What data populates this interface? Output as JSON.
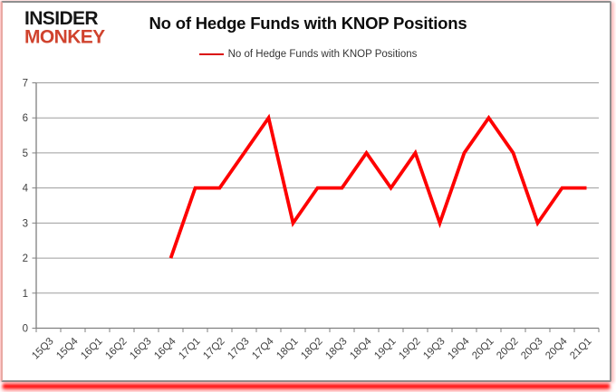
{
  "logo": {
    "line1": "INSIDER",
    "line2": "MONKEY",
    "line1_color": "#161616",
    "line2_color": "#d0432e"
  },
  "header": {
    "title": "No of Hedge Funds with KNOP Positions"
  },
  "legend": {
    "label": "No of Hedge Funds with KNOP Positions",
    "line_color": "#da0b0b"
  },
  "colors": {
    "gridline": "#9d9d9d",
    "axis": "#808080",
    "tick_label": "#3f3f3f",
    "series_red": "#fe0000",
    "frame_red": "#ff0000"
  },
  "chart_data": {
    "type": "line",
    "title": "No of Hedge Funds with KNOP Positions",
    "xlabel": "",
    "ylabel": "",
    "ylim": [
      0,
      7
    ],
    "yticks": [
      0,
      1,
      2,
      3,
      4,
      5,
      6,
      7
    ],
    "grid": true,
    "legend_position": "top",
    "categories": [
      "15Q3",
      "15Q4",
      "16Q1",
      "16Q2",
      "16Q3",
      "16Q4",
      "17Q1",
      "17Q2",
      "17Q3",
      "17Q4",
      "18Q1",
      "18Q2",
      "18Q3",
      "18Q4",
      "19Q1",
      "19Q2",
      "19Q3",
      "19Q4",
      "20Q1",
      "20Q2",
      "20Q3",
      "20Q4",
      "21Q1"
    ],
    "series": [
      {
        "name": "No of Hedge Funds with KNOP Positions",
        "color": "#fe0000",
        "values": [
          null,
          null,
          null,
          null,
          null,
          2,
          4,
          4,
          5,
          6,
          3,
          4,
          4,
          5,
          4,
          5,
          3,
          5,
          6,
          5,
          3,
          4,
          4
        ]
      }
    ]
  }
}
